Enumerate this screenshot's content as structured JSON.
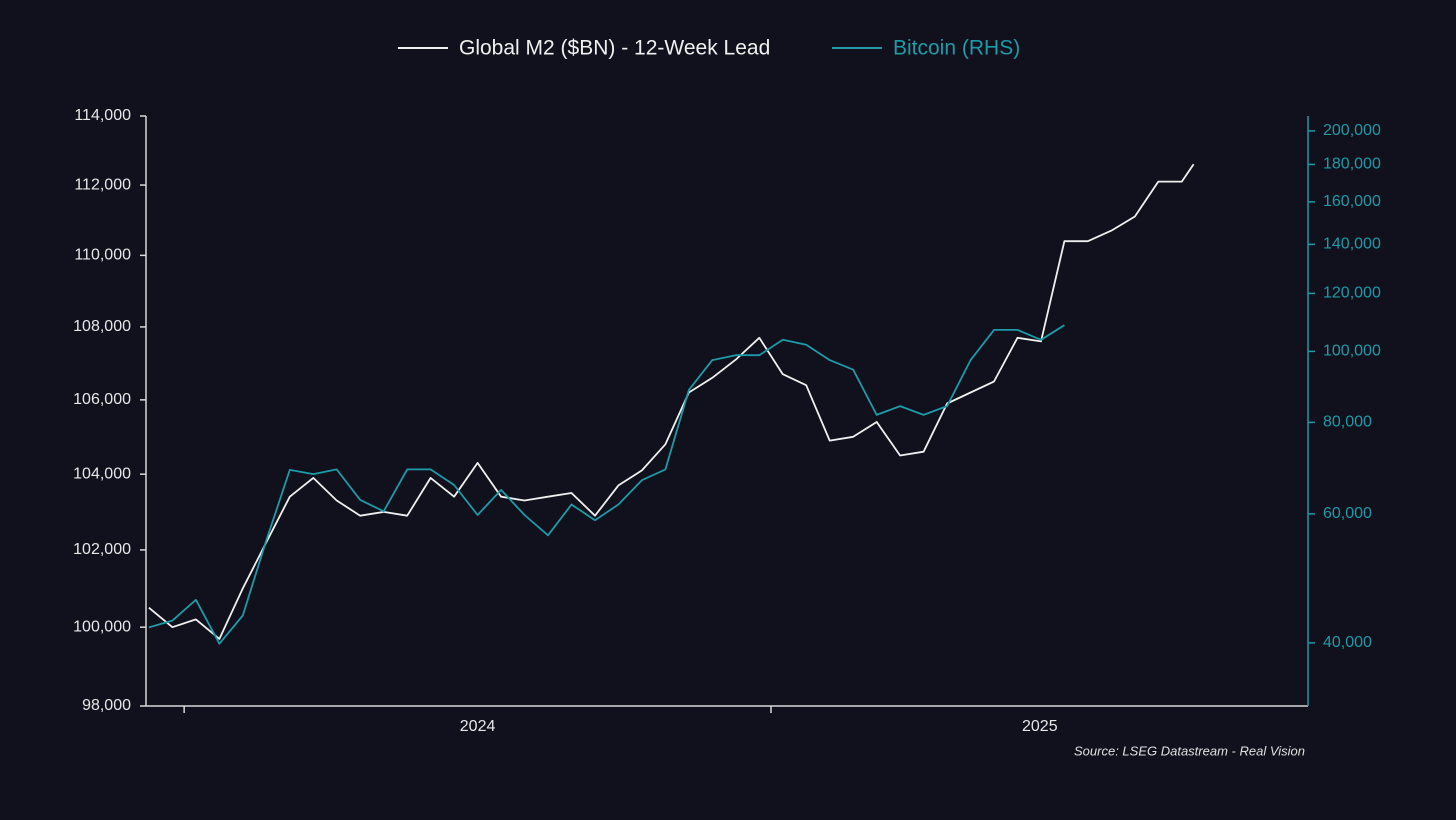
{
  "chart_data": {
    "type": "line",
    "background": "#10111c",
    "source": "Source: LSEG Datastream - Real Vision",
    "yscale": "log",
    "y2scale": "log",
    "xlim": [
      2023.935,
      2025.915
    ],
    "xticks": [
      2024,
      2025
    ],
    "xtick_labels": [
      {
        "value": 2024.5,
        "label": "2024"
      },
      {
        "value": 2025.458,
        "label": "2025"
      }
    ],
    "ylim": [
      98000,
      114000
    ],
    "yticks": [
      {
        "value": 98000,
        "label": "98,000"
      },
      {
        "value": 100000,
        "label": "100,000"
      },
      {
        "value": 102000,
        "label": "102,000"
      },
      {
        "value": 104000,
        "label": "104,000"
      },
      {
        "value": 106000,
        "label": "106,000"
      },
      {
        "value": 108000,
        "label": "108,000"
      },
      {
        "value": 110000,
        "label": "110,000"
      },
      {
        "value": 112000,
        "label": "112,000"
      },
      {
        "value": 114000,
        "label": "114,000"
      }
    ],
    "y2lim": [
      32800,
      209600
    ],
    "y2ticks": [
      {
        "value": 40000,
        "label": "40,000"
      },
      {
        "value": 60000,
        "label": "60,000"
      },
      {
        "value": 80000,
        "label": "80,000"
      },
      {
        "value": 100000,
        "label": "100,000"
      },
      {
        "value": 120000,
        "label": "120,000"
      },
      {
        "value": 140000,
        "label": "140,000"
      },
      {
        "value": 160000,
        "label": "160,000"
      },
      {
        "value": 180000,
        "label": "180,000"
      },
      {
        "value": 200000,
        "label": "200,000"
      }
    ],
    "x": [
      2023.94,
      2023.98,
      2024.02,
      2024.06,
      2024.1,
      2024.14,
      2024.18,
      2024.22,
      2024.26,
      2024.3,
      2024.34,
      2024.38,
      2024.42,
      2024.46,
      2024.5,
      2024.54,
      2024.58,
      2024.62,
      2024.66,
      2024.7,
      2024.74,
      2024.78,
      2024.82,
      2024.86,
      2024.9,
      2024.94,
      2024.98,
      2025.02,
      2025.06,
      2025.1,
      2025.14,
      2025.18,
      2025.22,
      2025.26,
      2025.3,
      2025.34,
      2025.38,
      2025.42,
      2025.46,
      2025.5,
      2025.54,
      2025.58,
      2025.62,
      2025.66,
      2025.7,
      2025.72
    ],
    "series": [
      {
        "name": "Global M2 ($BN) - 12-Week Lead",
        "color": "#f0f0f0",
        "axis": "y",
        "values": [
          100500,
          100000,
          100200,
          99700,
          101000,
          102200,
          103400,
          103900,
          103300,
          102900,
          103000,
          102900,
          103900,
          103400,
          104300,
          103400,
          103300,
          103400,
          103500,
          102900,
          103700,
          104100,
          104800,
          106200,
          106600,
          107100,
          107700,
          106700,
          106400,
          104900,
          105000,
          105400,
          104500,
          104600,
          105900,
          106200,
          106500,
          107700,
          107600,
          110400,
          110400,
          110700,
          111100,
          112100,
          112100,
          112600
        ]
      },
      {
        "name": "Bitcoin (RHS)",
        "color": "#1e9aa8",
        "axis": "y2",
        "values": [
          42000,
          42900,
          45800,
          39900,
          43600,
          55200,
          68900,
          68000,
          69000,
          62700,
          60500,
          69000,
          69000,
          65700,
          59800,
          64700,
          59800,
          56100,
          61800,
          58800,
          61800,
          66700,
          69000,
          88600,
          97300,
          98800,
          98800,
          103700,
          102100,
          97300,
          94400,
          81900,
          84200,
          81900,
          84200,
          97300,
          107000,
          107000,
          103700,
          108600,
          null,
          null,
          null,
          null,
          null,
          null
        ]
      }
    ]
  }
}
